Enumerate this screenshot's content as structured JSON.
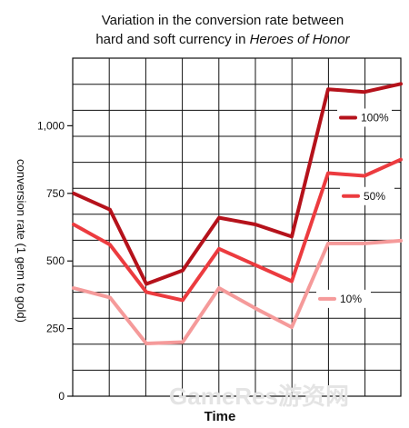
{
  "chart_data": {
    "type": "line",
    "title_line1": "Variation in the conversion rate between",
    "title_line2_prefix": "hard and soft currency in ",
    "title_line2_italic": "Heroes of Honor",
    "xlabel": "Time",
    "ylabel": "conversion rate (1 gem to gold)",
    "ylim": [
      0,
      1250
    ],
    "yticks": [
      0,
      250,
      500,
      750,
      1000
    ],
    "ytick_labels": [
      "0",
      "250",
      "500",
      "750",
      "1,000"
    ],
    "x": [
      0,
      1,
      2,
      3,
      4,
      5,
      6,
      7,
      8,
      9
    ],
    "grid": true,
    "series": [
      {
        "name": "100%",
        "color": "#b5121b",
        "values": [
          750,
          690,
          415,
          465,
          660,
          635,
          590,
          1135,
          1125,
          1155
        ]
      },
      {
        "name": "50%",
        "color": "#ec3b3f",
        "values": [
          635,
          560,
          385,
          355,
          545,
          485,
          425,
          825,
          815,
          875
        ]
      },
      {
        "name": "10%",
        "color": "#f59a9a",
        "values": [
          400,
          365,
          195,
          200,
          400,
          325,
          255,
          565,
          565,
          575
        ]
      }
    ]
  },
  "watermark": "GameRes游资网"
}
